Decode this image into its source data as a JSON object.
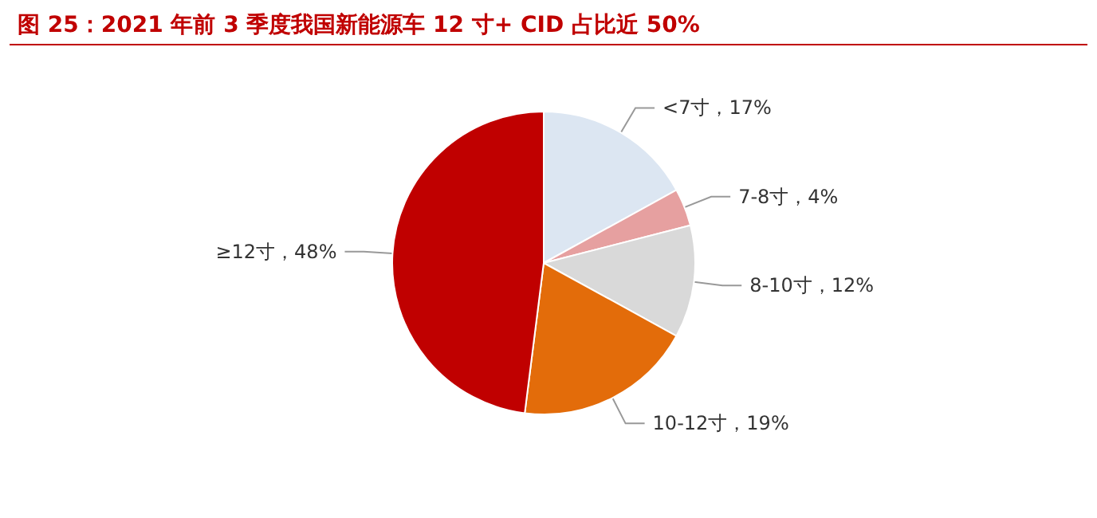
{
  "chart_data": {
    "type": "pie",
    "title": "图 25：2021 年前 3 季度我国新能源车 12 寸+ CID 占比近 50%",
    "categories": [
      "<7寸",
      "7-8寸",
      "8-10寸",
      "10-12寸",
      "≥12寸"
    ],
    "value_labels": [
      "17%",
      "4%",
      "12%",
      "19%",
      "48%"
    ],
    "values": [
      17,
      4,
      12,
      19,
      48
    ],
    "colors": [
      "#dce6f2",
      "#e6a0a0",
      "#d9d9d9",
      "#e36c0a",
      "#c00000"
    ],
    "legend": false
  }
}
